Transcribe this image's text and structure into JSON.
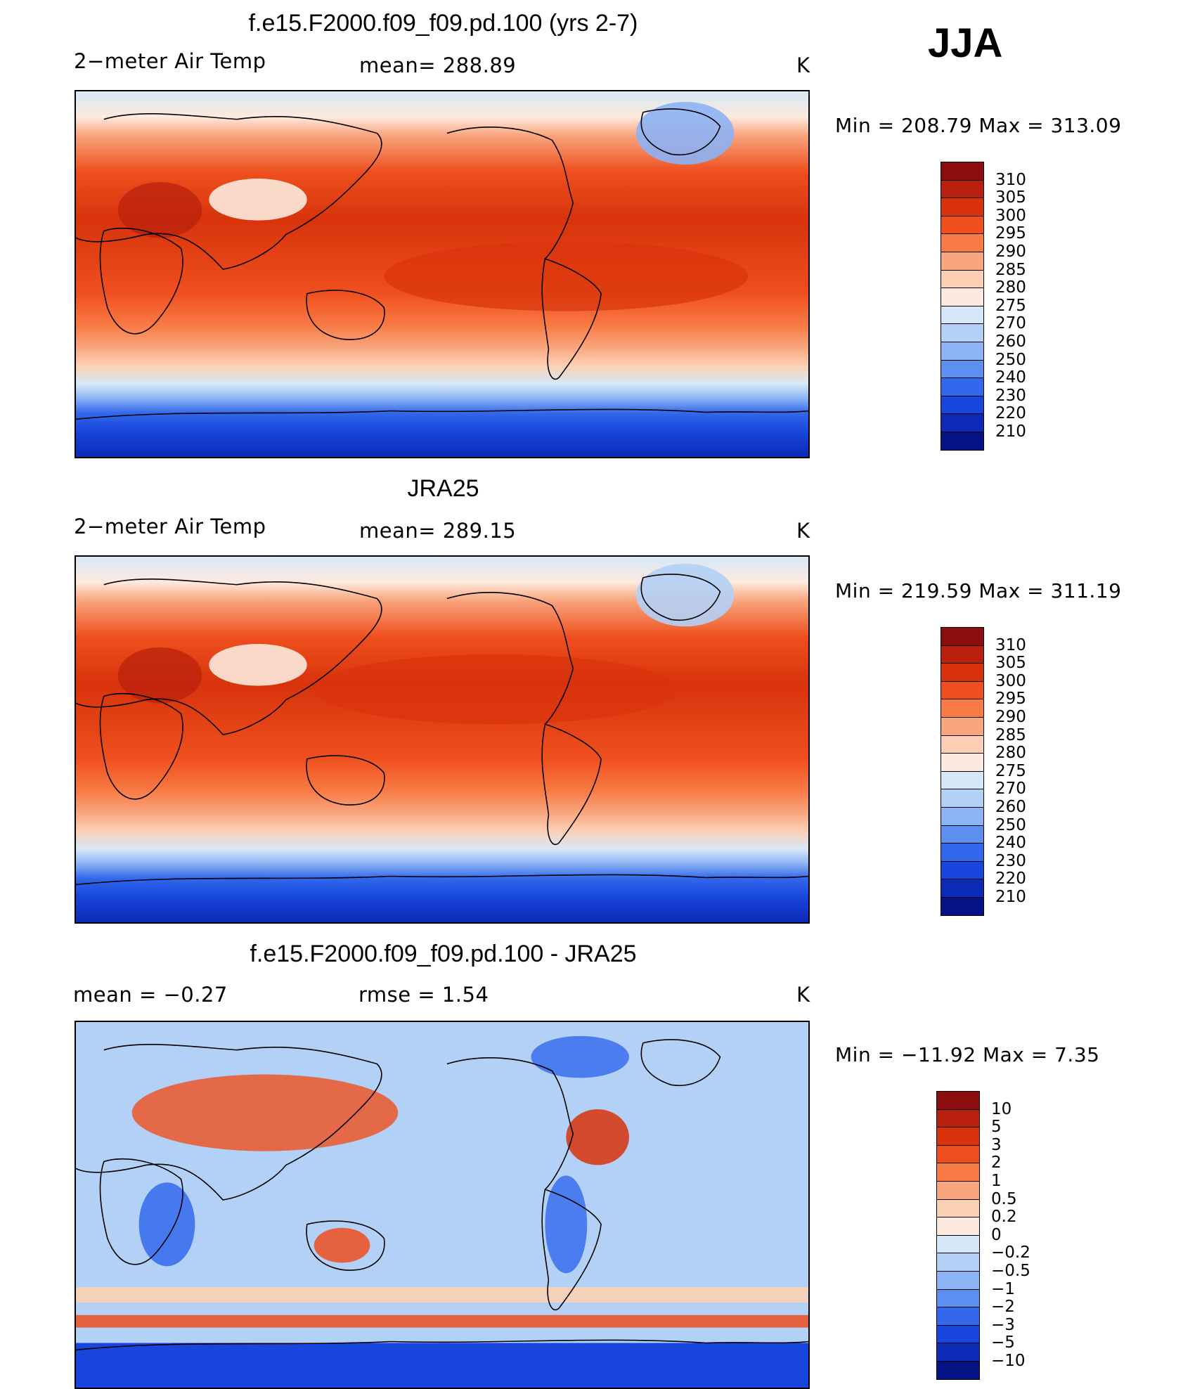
{
  "season": "JJA",
  "panels": [
    {
      "title": "f.e15.F2000.f09_f09.pd.100 (yrs 2-7)",
      "left_text": "2−meter Air Temp",
      "mid_text": "mean=  288.89",
      "units": "K",
      "minmax": "Min  =  208.79  Max  =  313.09",
      "colorbar": {
        "labels": [
          "310",
          "305",
          "300",
          "295",
          "290",
          "285",
          "280",
          "275",
          "270",
          "260",
          "250",
          "240",
          "230",
          "220",
          "210"
        ],
        "colors": [
          "#8b0d0d",
          "#b81f0c",
          "#d8330c",
          "#ef4f1e",
          "#f87a45",
          "#f9a57e",
          "#fcd0b4",
          "#fdeade",
          "#d6e8f8",
          "#b3d0f6",
          "#8cb3f4",
          "#5c8ff0",
          "#3268ec",
          "#1846dc",
          "#0c2ab6",
          "#061387"
        ]
      }
    },
    {
      "title": "JRA25",
      "left_text": "2−meter Air Temp",
      "mid_text": "mean=  289.15",
      "units": "K",
      "minmax": "Min  =  219.59  Max  =  311.19",
      "colorbar": {
        "labels": [
          "310",
          "305",
          "300",
          "295",
          "290",
          "285",
          "280",
          "275",
          "270",
          "260",
          "250",
          "240",
          "230",
          "220",
          "210"
        ],
        "colors": [
          "#8b0d0d",
          "#b81f0c",
          "#d8330c",
          "#ef4f1e",
          "#f87a45",
          "#f9a57e",
          "#fcd0b4",
          "#fdeade",
          "#d6e8f8",
          "#b3d0f6",
          "#8cb3f4",
          "#5c8ff0",
          "#3268ec",
          "#1846dc",
          "#0c2ab6",
          "#061387"
        ]
      }
    },
    {
      "title": "f.e15.F2000.f09_f09.pd.100 - JRA25",
      "left_text": "mean  =     −0.27",
      "mid_text": "rmse  =      1.54",
      "units": "K",
      "minmax": "Min  =  −11.92  Max  =      7.35",
      "colorbar": {
        "labels": [
          "10",
          "5",
          "3",
          "2",
          "1",
          "0.5",
          "0.2",
          "0",
          "−0.2",
          "−0.5",
          "−1",
          "−2",
          "−3",
          "−5",
          "−10"
        ],
        "colors": [
          "#8b0d0d",
          "#b81f0c",
          "#d8330c",
          "#ef4f1e",
          "#f87a45",
          "#f9a57e",
          "#fcd0b4",
          "#fdeade",
          "#d6e8f8",
          "#b3d0f6",
          "#8cb3f4",
          "#5c8ff0",
          "#3268ec",
          "#1846dc",
          "#0c2ab6",
          "#061387"
        ]
      }
    }
  ]
}
